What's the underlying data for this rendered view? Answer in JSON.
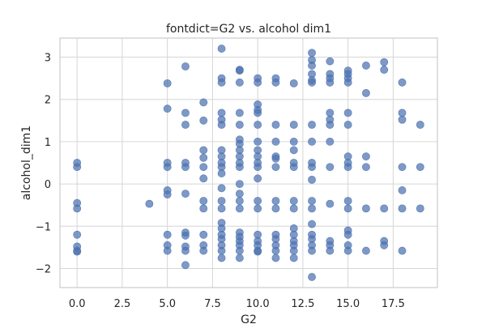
{
  "chart_data": {
    "type": "scatter",
    "title": "fontdict=G2 vs. alcohol dim1",
    "xlabel": "G2",
    "ylabel": "alcohol_dim1",
    "xlim": [
      -0.95,
      19.95
    ],
    "ylim": [
      -2.45,
      3.45
    ],
    "xticks": [
      0.0,
      2.5,
      5.0,
      7.5,
      10.0,
      12.5,
      15.0,
      17.5
    ],
    "xtick_labels": [
      "0.0",
      "2.5",
      "5.0",
      "7.5",
      "10.0",
      "12.5",
      "15.0",
      "17.5"
    ],
    "yticks": [
      -2,
      -1,
      0,
      1,
      2,
      3
    ],
    "ytick_labels": [
      "−2",
      "−1",
      "0",
      "1",
      "2",
      "3"
    ],
    "grid": true,
    "legend": "none",
    "color": "#4c72b0",
    "points": [
      [
        0,
        0.5
      ],
      [
        0,
        0.4
      ],
      [
        0,
        -0.45
      ],
      [
        0,
        -0.58
      ],
      [
        0,
        -1.2
      ],
      [
        0,
        -1.48
      ],
      [
        0,
        -1.58
      ],
      [
        0,
        -1.6
      ],
      [
        4,
        -0.47
      ],
      [
        5,
        2.38
      ],
      [
        5,
        1.78
      ],
      [
        5,
        0.5
      ],
      [
        5,
        0.4
      ],
      [
        5,
        -0.15
      ],
      [
        5,
        -0.25
      ],
      [
        5,
        -1.2
      ],
      [
        5,
        -1.45
      ],
      [
        5,
        -1.58
      ],
      [
        6,
        2.78
      ],
      [
        6,
        1.68
      ],
      [
        6,
        1.4
      ],
      [
        6,
        0.5
      ],
      [
        6,
        0.4
      ],
      [
        6,
        -0.23
      ],
      [
        6,
        -1.15
      ],
      [
        6,
        -1.22
      ],
      [
        6,
        -1.48
      ],
      [
        6,
        -1.58
      ],
      [
        6,
        -1.92
      ],
      [
        7,
        1.93
      ],
      [
        7,
        1.5
      ],
      [
        7,
        0.8
      ],
      [
        7,
        0.62
      ],
      [
        7,
        0.4
      ],
      [
        7,
        0.13
      ],
      [
        7,
        -0.4
      ],
      [
        7,
        -0.58
      ],
      [
        7,
        -1.2
      ],
      [
        7,
        -1.45
      ],
      [
        7,
        -1.58
      ],
      [
        8,
        3.2
      ],
      [
        8,
        2.5
      ],
      [
        8,
        2.4
      ],
      [
        8,
        1.68
      ],
      [
        8,
        1.52
      ],
      [
        8,
        1.4
      ],
      [
        8,
        0.8
      ],
      [
        8,
        0.65
      ],
      [
        8,
        0.5
      ],
      [
        8,
        0.4
      ],
      [
        8,
        0.25
      ],
      [
        8,
        -0.1
      ],
      [
        8,
        -0.4
      ],
      [
        8,
        -0.58
      ],
      [
        8,
        -0.92
      ],
      [
        8,
        -1.05
      ],
      [
        8,
        -1.2
      ],
      [
        8,
        -1.3
      ],
      [
        8,
        -1.45
      ],
      [
        8,
        -1.58
      ],
      [
        8,
        -1.75
      ],
      [
        9,
        2.7
      ],
      [
        9,
        2.68
      ],
      [
        9,
        2.4
      ],
      [
        9,
        1.68
      ],
      [
        9,
        1.4
      ],
      [
        9,
        1.05
      ],
      [
        9,
        0.95
      ],
      [
        9,
        0.8
      ],
      [
        9,
        0.65
      ],
      [
        9,
        0.5
      ],
      [
        9,
        0.4
      ],
      [
        9,
        0
      ],
      [
        9,
        -0.23
      ],
      [
        9,
        -0.4
      ],
      [
        9,
        -0.58
      ],
      [
        9,
        -1.15
      ],
      [
        9,
        -1.25
      ],
      [
        9,
        -1.35
      ],
      [
        9,
        -1.45
      ],
      [
        9,
        -1.58
      ],
      [
        9,
        -1.75
      ],
      [
        10,
        2.5
      ],
      [
        10,
        2.4
      ],
      [
        10,
        1.88
      ],
      [
        10,
        1.75
      ],
      [
        10,
        1.68
      ],
      [
        10,
        1.4
      ],
      [
        10,
        1.0
      ],
      [
        10,
        0.8
      ],
      [
        10,
        0.65
      ],
      [
        10,
        0.5
      ],
      [
        10,
        0.4
      ],
      [
        10,
        0.13
      ],
      [
        10,
        -0.4
      ],
      [
        10,
        -0.58
      ],
      [
        10,
        -1.2
      ],
      [
        10,
        -1.35
      ],
      [
        10,
        -1.45
      ],
      [
        10,
        -1.58
      ],
      [
        10,
        -1.6
      ],
      [
        11,
        2.5
      ],
      [
        11,
        2.4
      ],
      [
        11,
        1.4
      ],
      [
        11,
        1.0
      ],
      [
        11,
        0.65
      ],
      [
        11,
        0.6
      ],
      [
        11,
        0.4
      ],
      [
        11,
        -0.4
      ],
      [
        11,
        -0.58
      ],
      [
        11,
        -1.2
      ],
      [
        11,
        -1.3
      ],
      [
        11,
        -1.45
      ],
      [
        11,
        -1.58
      ],
      [
        11,
        -1.75
      ],
      [
        12,
        2.38
      ],
      [
        12,
        1.4
      ],
      [
        12,
        1.0
      ],
      [
        12,
        0.8
      ],
      [
        12,
        0.5
      ],
      [
        12,
        0.4
      ],
      [
        12,
        -0.4
      ],
      [
        12,
        -0.58
      ],
      [
        12,
        -1.05
      ],
      [
        12,
        -1.2
      ],
      [
        12,
        -1.35
      ],
      [
        12,
        -1.45
      ],
      [
        12,
        -1.58
      ],
      [
        12,
        -1.75
      ],
      [
        13,
        3.1
      ],
      [
        13,
        2.93
      ],
      [
        13,
        2.8
      ],
      [
        13,
        2.6
      ],
      [
        13,
        2.45
      ],
      [
        13,
        2.4
      ],
      [
        13,
        1.4
      ],
      [
        13,
        1.0
      ],
      [
        13,
        0.5
      ],
      [
        13,
        0.4
      ],
      [
        13,
        0.1
      ],
      [
        13,
        -0.4
      ],
      [
        13,
        -0.58
      ],
      [
        13,
        -0.95
      ],
      [
        13,
        -1.2
      ],
      [
        13,
        -1.3
      ],
      [
        13,
        -1.45
      ],
      [
        13,
        -1.58
      ],
      [
        13,
        -2.2
      ],
      [
        14,
        2.9
      ],
      [
        14,
        2.6
      ],
      [
        14,
        2.5
      ],
      [
        14,
        2.4
      ],
      [
        14,
        1.68
      ],
      [
        14,
        1.52
      ],
      [
        14,
        1.4
      ],
      [
        14,
        1.0
      ],
      [
        14,
        0.4
      ],
      [
        14,
        -0.47
      ],
      [
        14,
        -1.35
      ],
      [
        14,
        -1.45
      ],
      [
        14,
        -1.58
      ],
      [
        15,
        2.68
      ],
      [
        15,
        2.6
      ],
      [
        15,
        2.5
      ],
      [
        15,
        2.4
      ],
      [
        15,
        1.68
      ],
      [
        15,
        1.4
      ],
      [
        15,
        0.65
      ],
      [
        15,
        0.5
      ],
      [
        15,
        0.4
      ],
      [
        15,
        -0.4
      ],
      [
        15,
        -0.58
      ],
      [
        15,
        -1.1
      ],
      [
        15,
        -1.2
      ],
      [
        15,
        -1.45
      ],
      [
        15,
        -1.58
      ],
      [
        16,
        2.8
      ],
      [
        16,
        2.15
      ],
      [
        16,
        0.65
      ],
      [
        16,
        0.4
      ],
      [
        16,
        -0.58
      ],
      [
        16,
        -1.58
      ],
      [
        17,
        2.88
      ],
      [
        17,
        2.7
      ],
      [
        17,
        -0.58
      ],
      [
        17,
        -1.35
      ],
      [
        17,
        -1.45
      ],
      [
        18,
        2.4
      ],
      [
        18,
        1.68
      ],
      [
        18,
        1.52
      ],
      [
        18,
        0.4
      ],
      [
        18,
        -0.15
      ],
      [
        18,
        -0.58
      ],
      [
        18,
        -1.58
      ],
      [
        19,
        1.4
      ],
      [
        19,
        0.4
      ],
      [
        19,
        -0.58
      ]
    ]
  }
}
